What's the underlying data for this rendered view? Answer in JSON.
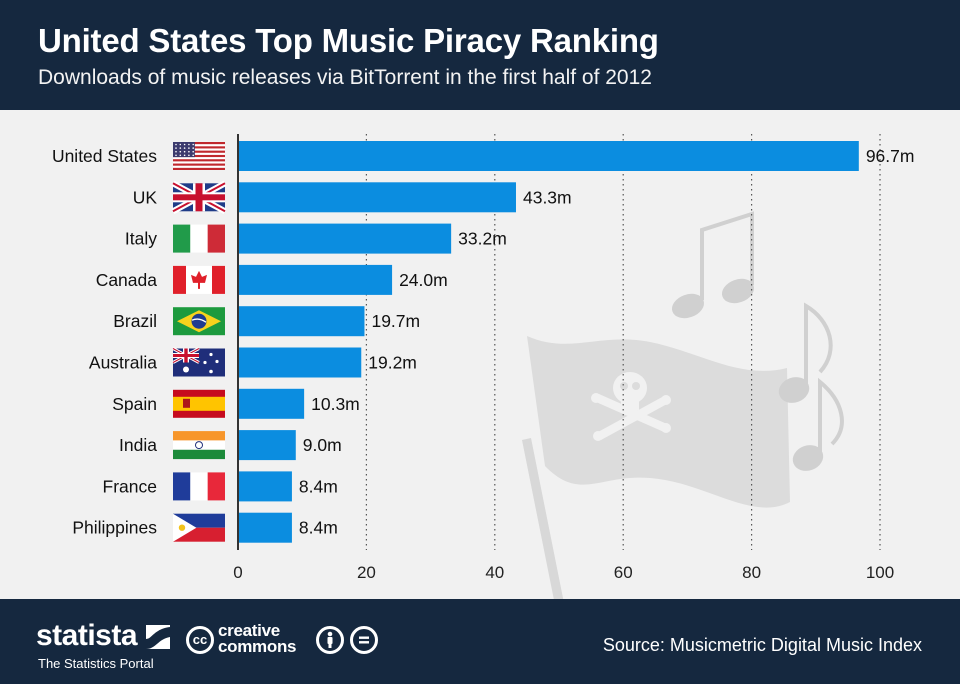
{
  "header": {
    "title": "United States Top Music Piracy Ranking",
    "subtitle": "Downloads of music releases via BitTorrent in the first half of 2012"
  },
  "footer": {
    "brand": "statista",
    "tagline": "The Statistics Portal",
    "cc_label_1": "creative",
    "cc_label_2": "commons",
    "cc_symbol": "cc",
    "source": "Source: Musicmetric Digital Music Index"
  },
  "colors": {
    "header_bg": "#15283f",
    "bar": "#0b8de0",
    "background": "#f1f1f1"
  },
  "chart_data": {
    "type": "bar",
    "orientation": "horizontal",
    "title": "United States Top Music Piracy Ranking",
    "subtitle": "Downloads of music releases via BitTorrent in the first half of 2012",
    "categories": [
      "United States",
      "UK",
      "Italy",
      "Canada",
      "Brazil",
      "Australia",
      "Spain",
      "India",
      "France",
      "Philippines"
    ],
    "flags": [
      "us-flag-icon",
      "uk-flag-icon",
      "italy-flag-icon",
      "canada-flag-icon",
      "brazil-flag-icon",
      "australia-flag-icon",
      "spain-flag-icon",
      "india-flag-icon",
      "france-flag-icon",
      "philippines-flag-icon"
    ],
    "values": [
      96.7,
      43.3,
      33.2,
      24.0,
      19.7,
      19.2,
      10.3,
      9.0,
      8.4,
      8.4
    ],
    "value_labels": [
      "96.7m",
      "43.3m",
      "33.2m",
      "24.0m",
      "19.7m",
      "19.2m",
      "10.3m",
      "9.0m",
      "8.4m",
      "8.4m"
    ],
    "xlim": [
      0,
      100
    ],
    "xticks": [
      0,
      20,
      40,
      60,
      80,
      100
    ],
    "grid": "vertical dotted",
    "legend": "none"
  }
}
